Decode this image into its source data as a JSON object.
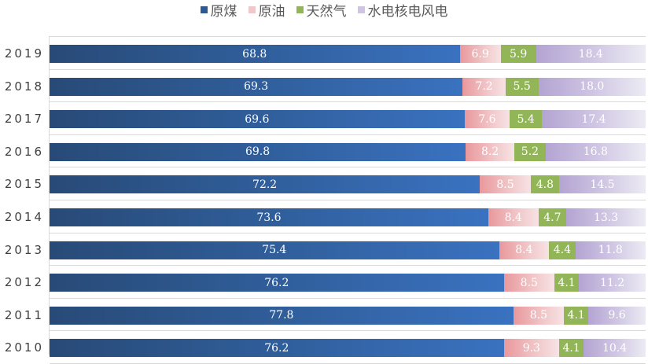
{
  "legend": [
    {
      "label": "原煤",
      "color": "#2e5a93"
    },
    {
      "label": "原油",
      "color": "#f1c8ca"
    },
    {
      "label": "天然气",
      "color": "#92b557"
    },
    {
      "label": "水电核电风电",
      "color": "#cfc5e3"
    }
  ],
  "chart_data": {
    "type": "bar",
    "orientation": "horizontal",
    "stacked": true,
    "percent_stacked": true,
    "title": "",
    "xlabel": "",
    "ylabel": "",
    "categories": [
      "2019",
      "2018",
      "2017",
      "2016",
      "2015",
      "2014",
      "2013",
      "2012",
      "2011",
      "2010"
    ],
    "series": [
      {
        "name": "原煤",
        "values": [
          68.8,
          69.3,
          69.6,
          69.8,
          72.2,
          73.6,
          75.4,
          76.2,
          77.8,
          76.2
        ]
      },
      {
        "name": "原油",
        "values": [
          6.9,
          7.2,
          7.6,
          8.2,
          8.5,
          8.4,
          8.4,
          8.5,
          8.5,
          9.3
        ]
      },
      {
        "name": "天然气",
        "values": [
          5.9,
          5.5,
          5.4,
          5.2,
          4.8,
          4.7,
          4.4,
          4.1,
          4.1,
          4.1
        ]
      },
      {
        "name": "水电核电风电",
        "values": [
          18.4,
          18.0,
          17.4,
          16.8,
          14.5,
          13.3,
          11.8,
          11.2,
          9.6,
          10.4
        ]
      }
    ],
    "legend_position": "top",
    "grid": true,
    "data_labels": true
  }
}
